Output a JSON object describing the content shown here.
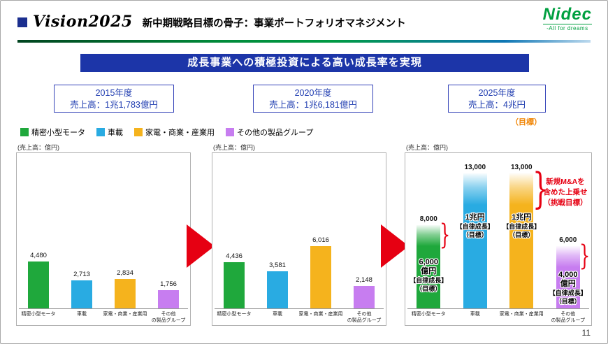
{
  "header": {
    "brand": "Vision2025",
    "title": "新中期戦略目標の骨子：事業ポートフォリオマネジメント",
    "logo": "Nidec",
    "logo_tagline": "-All for dreams"
  },
  "banner": "成長事業への積極投資による高い成長率を実現",
  "year_boxes": [
    {
      "year": "2015年度",
      "sales": "売上高：1兆1,783億円",
      "note": ""
    },
    {
      "year": "2020年度",
      "sales": "売上高：1兆6,181億円",
      "note": ""
    },
    {
      "year": "2025年度",
      "sales": "売上高：4兆円",
      "note": "（目標）"
    }
  ],
  "legend": [
    {
      "label": "精密小型モータ",
      "color": "#1fa83c"
    },
    {
      "label": "車載",
      "color": "#29abe2"
    },
    {
      "label": "家電・商業・産業用",
      "color": "#f5b31d"
    },
    {
      "label": "その他の製品グループ",
      "color": "#c77df0"
    }
  ],
  "colors": {
    "accent_red": "#e60012",
    "banner_blue": "#1c35a8",
    "box_border_blue": "#3342b8",
    "target_orange": "#f08300",
    "nidec_green": "#00a040"
  },
  "page_number": "11",
  "chart_data": [
    {
      "type": "bar",
      "title": "(売上高：億円)",
      "categories": [
        "精密小型モータ",
        "車載",
        "家電・商業・産業用",
        "その他\nの製品グループ"
      ],
      "values": [
        4480,
        2713,
        2834,
        1756
      ],
      "labels": [
        "4,480",
        "2,713",
        "2,834",
        "1,756"
      ],
      "colors": [
        "#1fa83c",
        "#29abe2",
        "#f5b31d",
        "#c77df0"
      ],
      "ylim": [
        0,
        14000
      ],
      "year": "2015"
    },
    {
      "type": "bar",
      "title": "(売上高：億円)",
      "categories": [
        "精密小型モータ",
        "車載",
        "家電・商業・産業用",
        "その他\nの製品グループ"
      ],
      "values": [
        4436,
        3581,
        6016,
        2148
      ],
      "labels": [
        "4,436",
        "3,581",
        "6,016",
        "2,148"
      ],
      "colors": [
        "#1fa83c",
        "#29abe2",
        "#f5b31d",
        "#c77df0"
      ],
      "ylim": [
        0,
        14000
      ],
      "year": "2020"
    },
    {
      "type": "stacked-bar",
      "title": "(売上高：億円)",
      "categories": [
        "精密小型モータ",
        "車載",
        "家電・商業・産業用",
        "その他\nの製品グループ"
      ],
      "solid_values": [
        6000,
        10000,
        10000,
        4000
      ],
      "total_values": [
        8000,
        13000,
        13000,
        6000
      ],
      "total_labels": [
        "8,000",
        "13,000",
        "13,000",
        "6,000"
      ],
      "bar_texts": [
        [
          "6,000",
          "億円",
          "【自律成長】",
          "（目標）"
        ],
        [
          "1兆円",
          "【自律成長】",
          "（目標）"
        ],
        [
          "1兆円",
          "【自律成長】",
          "（目標）"
        ],
        [
          "4,000",
          "億円",
          "【自律成長】",
          "（目標）"
        ]
      ],
      "braces": [
        0,
        2,
        3
      ],
      "annotation": [
        "新規M&Aを",
        "含めた上乗せ",
        "（挑戦目標）"
      ],
      "colors": [
        "#1fa83c",
        "#29abe2",
        "#f5b31d",
        "#c77df0"
      ],
      "ylim": [
        0,
        14000
      ],
      "year": "2025"
    }
  ]
}
